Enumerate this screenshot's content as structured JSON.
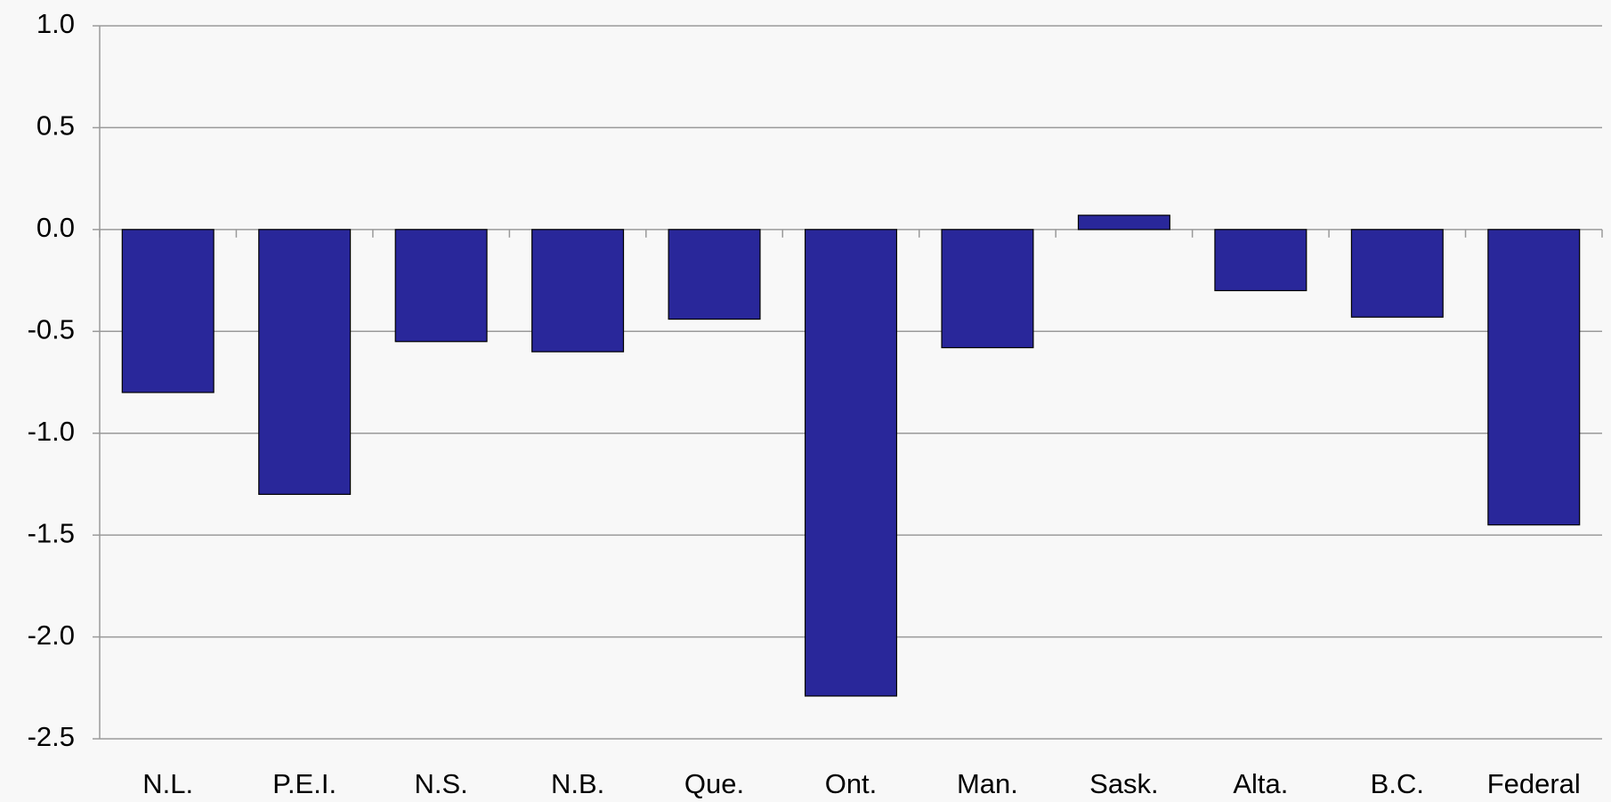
{
  "chart_data": {
    "type": "bar",
    "categories": [
      "N.L.",
      "P.E.I.",
      "N.S.",
      "N.B.",
      "Que.",
      "Ont.",
      "Man.",
      "Sask.",
      "Alta.",
      "B.C.",
      "Federal"
    ],
    "values": [
      -0.8,
      -1.3,
      -0.55,
      -0.6,
      -0.44,
      -2.29,
      -0.58,
      0.07,
      -0.3,
      -0.43,
      -1.45
    ],
    "color": "#29279a",
    "ylim": [
      -2.5,
      1.0
    ],
    "yticks": [
      {
        "value": 1.0,
        "label": "1.0"
      },
      0.5,
      {
        "value": 0.0,
        "label": "0.0"
      },
      -0.5,
      {
        "value": -1.0,
        "label": "-1.0"
      },
      -1.5,
      {
        "value": -2.0,
        "label": "-2.0"
      },
      -2.5
    ],
    "grid": true
  }
}
